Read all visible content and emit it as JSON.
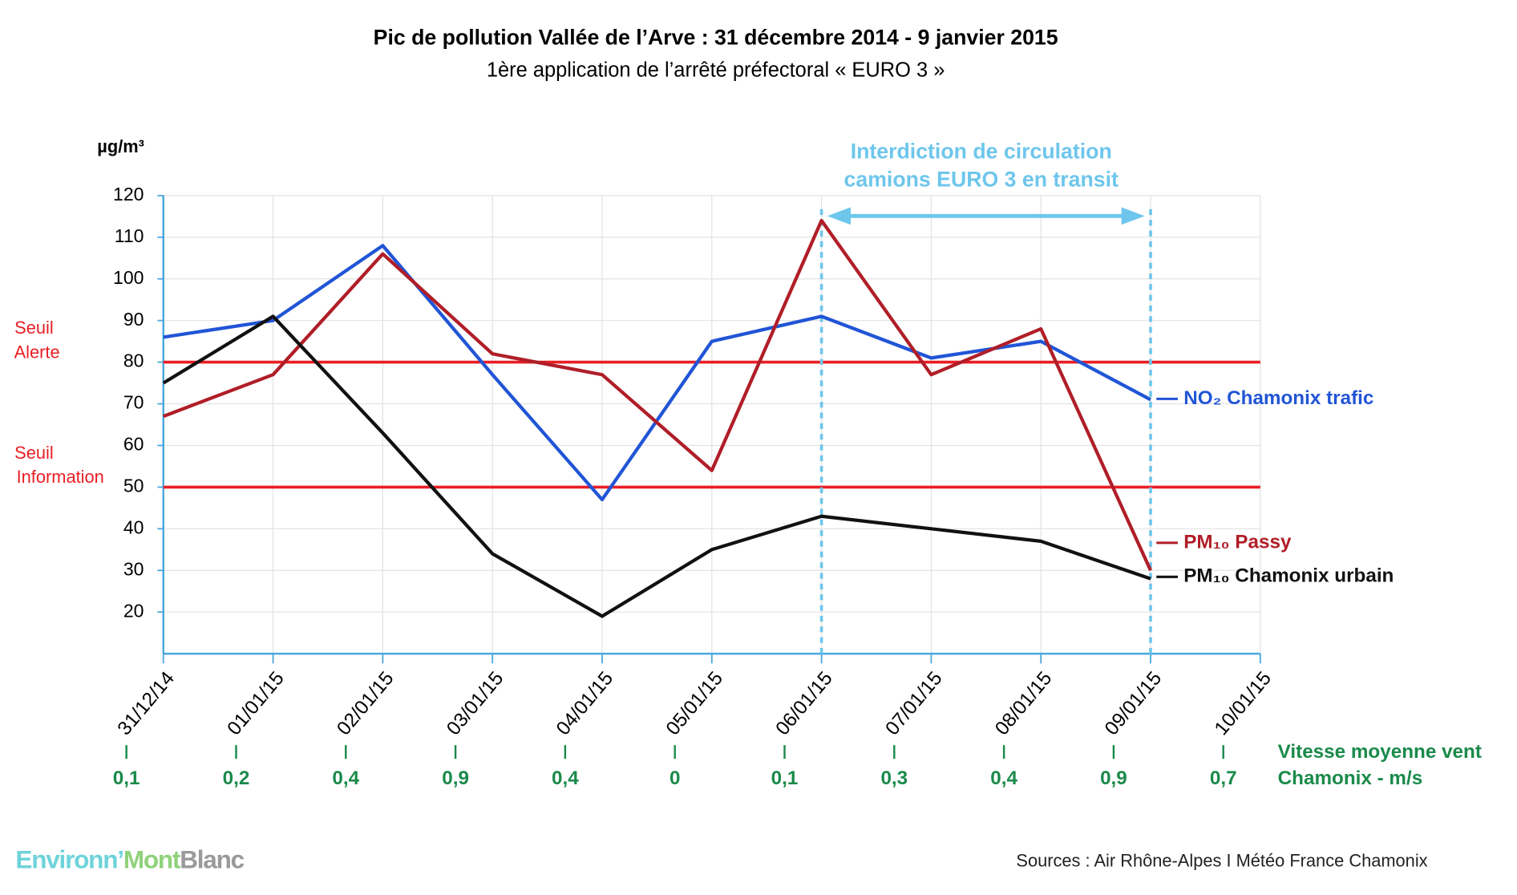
{
  "chart_data": {
    "type": "line",
    "title": "Pic de pollution Vallée de l’Arve : 31 décembre 2014 - 9 janvier 2015",
    "subtitle": "1ère application de l’arrêté préfectoral « EURO 3 »",
    "y_label": "µg/m³",
    "categories": [
      "31/12/14",
      "01/01/15",
      "02/01/15",
      "03/01/15",
      "04/01/15",
      "05/01/15",
      "06/01/15",
      "07/01/15",
      "08/01/15",
      "09/01/15",
      "10/01/15"
    ],
    "ylim": [
      10,
      120
    ],
    "yticks": [
      20,
      30,
      40,
      50,
      60,
      70,
      80,
      90,
      100,
      110,
      120
    ],
    "grid": true,
    "series": [
      {
        "name": "NO₂ Chamonix trafic",
        "color": "#2155d6",
        "values": [
          86,
          90,
          108,
          77,
          47,
          85,
          91,
          81,
          85,
          71,
          null
        ]
      },
      {
        "name": "PM₁₀ Passy",
        "color": "#b01e28",
        "values": [
          67,
          77,
          106,
          82,
          77,
          54,
          114,
          77,
          88,
          30,
          null
        ]
      },
      {
        "name": "PM₁₀ Chamonix urbain",
        "color": "#111111",
        "values": [
          75,
          91,
          63,
          34,
          19,
          35,
          43,
          40,
          37,
          28,
          null
        ]
      }
    ],
    "thresholds": [
      {
        "label": [
          "Seuil",
          "Alerte"
        ],
        "value": 80,
        "color": "#e81e25"
      },
      {
        "label": [
          "Seuil",
          "Information"
        ],
        "value": 50,
        "color": "#e81e25"
      }
    ],
    "annotation": {
      "lines": [
        "Interdiction de circulation",
        "camions EURO 3 en transit"
      ],
      "from": "06/01/15",
      "to": "09/01/15",
      "color": "#6ec6ec"
    },
    "wind": {
      "label": [
        "Vitesse moyenne vent",
        "Chamonix - m/s"
      ],
      "color": "#1a8a4a",
      "values": [
        0.1,
        0.2,
        0.4,
        0.9,
        0.4,
        0,
        0.1,
        0.3,
        0.4,
        0.9,
        0.7
      ],
      "value_labels": [
        "0,1",
        "0,2",
        "0,4",
        "0,9",
        "0,4",
        "0",
        "0,1",
        "0,3",
        "0,4",
        "0,9",
        "0,7"
      ]
    }
  },
  "footer": {
    "logo": [
      "Environn’",
      "Mont",
      "Blanc"
    ],
    "sources": "Sources :  Air Rhône-Alpes  I  Météo France Chamonix"
  }
}
